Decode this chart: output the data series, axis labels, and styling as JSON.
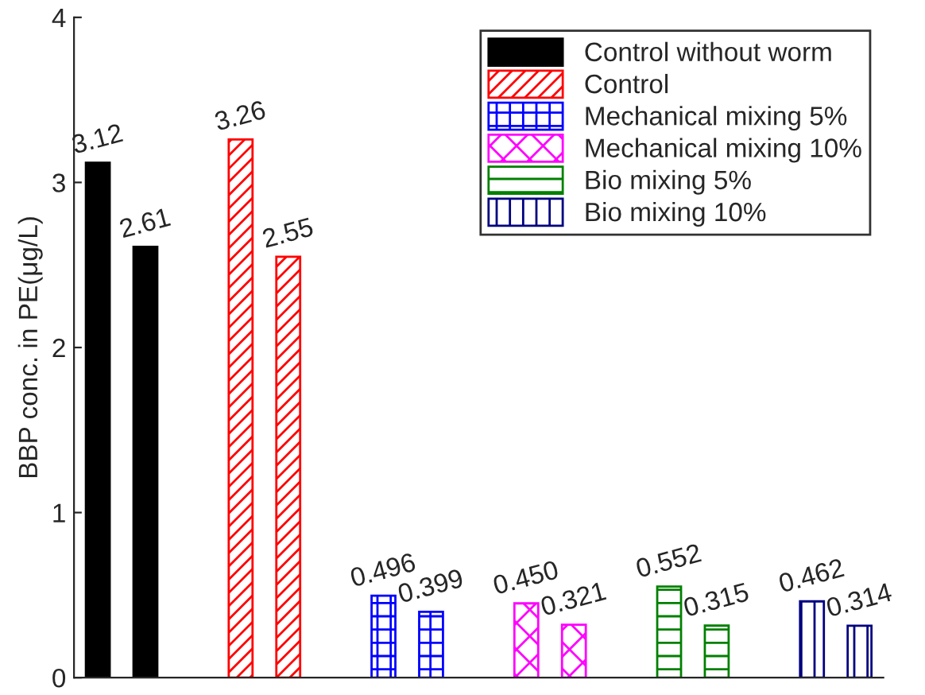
{
  "chart_data": {
    "type": "bar",
    "ylabel": "BBP conc. in PE(μg/L)",
    "categories": [
      null,
      null,
      null,
      null,
      null,
      null,
      null,
      null,
      null,
      null,
      null,
      null,
      null,
      null,
      null,
      null,
      null
    ],
    "series": [
      {
        "name": "Control without worm",
        "color": "#000000",
        "values": [
          3.12,
          2.61,
          null,
          null,
          null,
          null,
          null,
          null,
          null,
          null,
          null,
          null,
          null,
          null,
          null,
          null,
          null
        ],
        "value_labels": [
          "3.12",
          "2.61",
          null,
          null,
          null,
          null,
          null,
          null,
          null,
          null,
          null,
          null,
          null,
          null,
          null,
          null,
          null
        ]
      },
      {
        "name": "Control",
        "color": "#ff0000",
        "values": [
          null,
          null,
          null,
          3.26,
          2.55,
          null,
          null,
          null,
          null,
          null,
          null,
          null,
          null,
          null,
          null,
          null,
          null
        ],
        "value_labels": [
          null,
          null,
          null,
          "3.26",
          "2.55",
          null,
          null,
          null,
          null,
          null,
          null,
          null,
          null,
          null,
          null,
          null,
          null
        ]
      },
      {
        "name": "Mechanical mixing 5%",
        "color": "#0000ff",
        "values": [
          null,
          null,
          null,
          null,
          null,
          null,
          0.496,
          0.399,
          null,
          null,
          null,
          null,
          null,
          null,
          null,
          null,
          null
        ],
        "value_labels": [
          null,
          null,
          null,
          null,
          null,
          null,
          "0.496",
          "0.399",
          null,
          null,
          null,
          null,
          null,
          null,
          null,
          null,
          null
        ]
      },
      {
        "name": "Mechanical mixing 10%",
        "color": "#ff00ff",
        "values": [
          null,
          null,
          null,
          null,
          null,
          null,
          null,
          null,
          null,
          0.45,
          0.321,
          null,
          null,
          null,
          null,
          null,
          null
        ],
        "value_labels": [
          null,
          null,
          null,
          null,
          null,
          null,
          null,
          null,
          null,
          "0.450",
          "0.321",
          null,
          null,
          null,
          null,
          null,
          null
        ]
      },
      {
        "name": "Bio mixing 5%",
        "color": "#008000",
        "values": [
          null,
          null,
          null,
          null,
          null,
          null,
          null,
          null,
          null,
          null,
          null,
          null,
          0.552,
          0.315,
          null,
          null,
          null
        ],
        "value_labels": [
          null,
          null,
          null,
          null,
          null,
          null,
          null,
          null,
          null,
          null,
          null,
          null,
          "0.552",
          "0.315",
          null,
          null,
          null
        ]
      },
      {
        "name": "Bio mixing 10%",
        "color": "#000080",
        "values": [
          null,
          null,
          null,
          null,
          null,
          null,
          null,
          null,
          null,
          null,
          null,
          null,
          null,
          null,
          null,
          0.462,
          0.314
        ],
        "value_labels": [
          null,
          null,
          null,
          null,
          null,
          null,
          null,
          null,
          null,
          null,
          null,
          null,
          null,
          null,
          null,
          "0.462",
          "0.314"
        ]
      }
    ],
    "ylim": [
      0,
      4
    ],
    "yticks": [
      0,
      1,
      2,
      3,
      4
    ],
    "grid": false,
    "legend": "top right"
  }
}
